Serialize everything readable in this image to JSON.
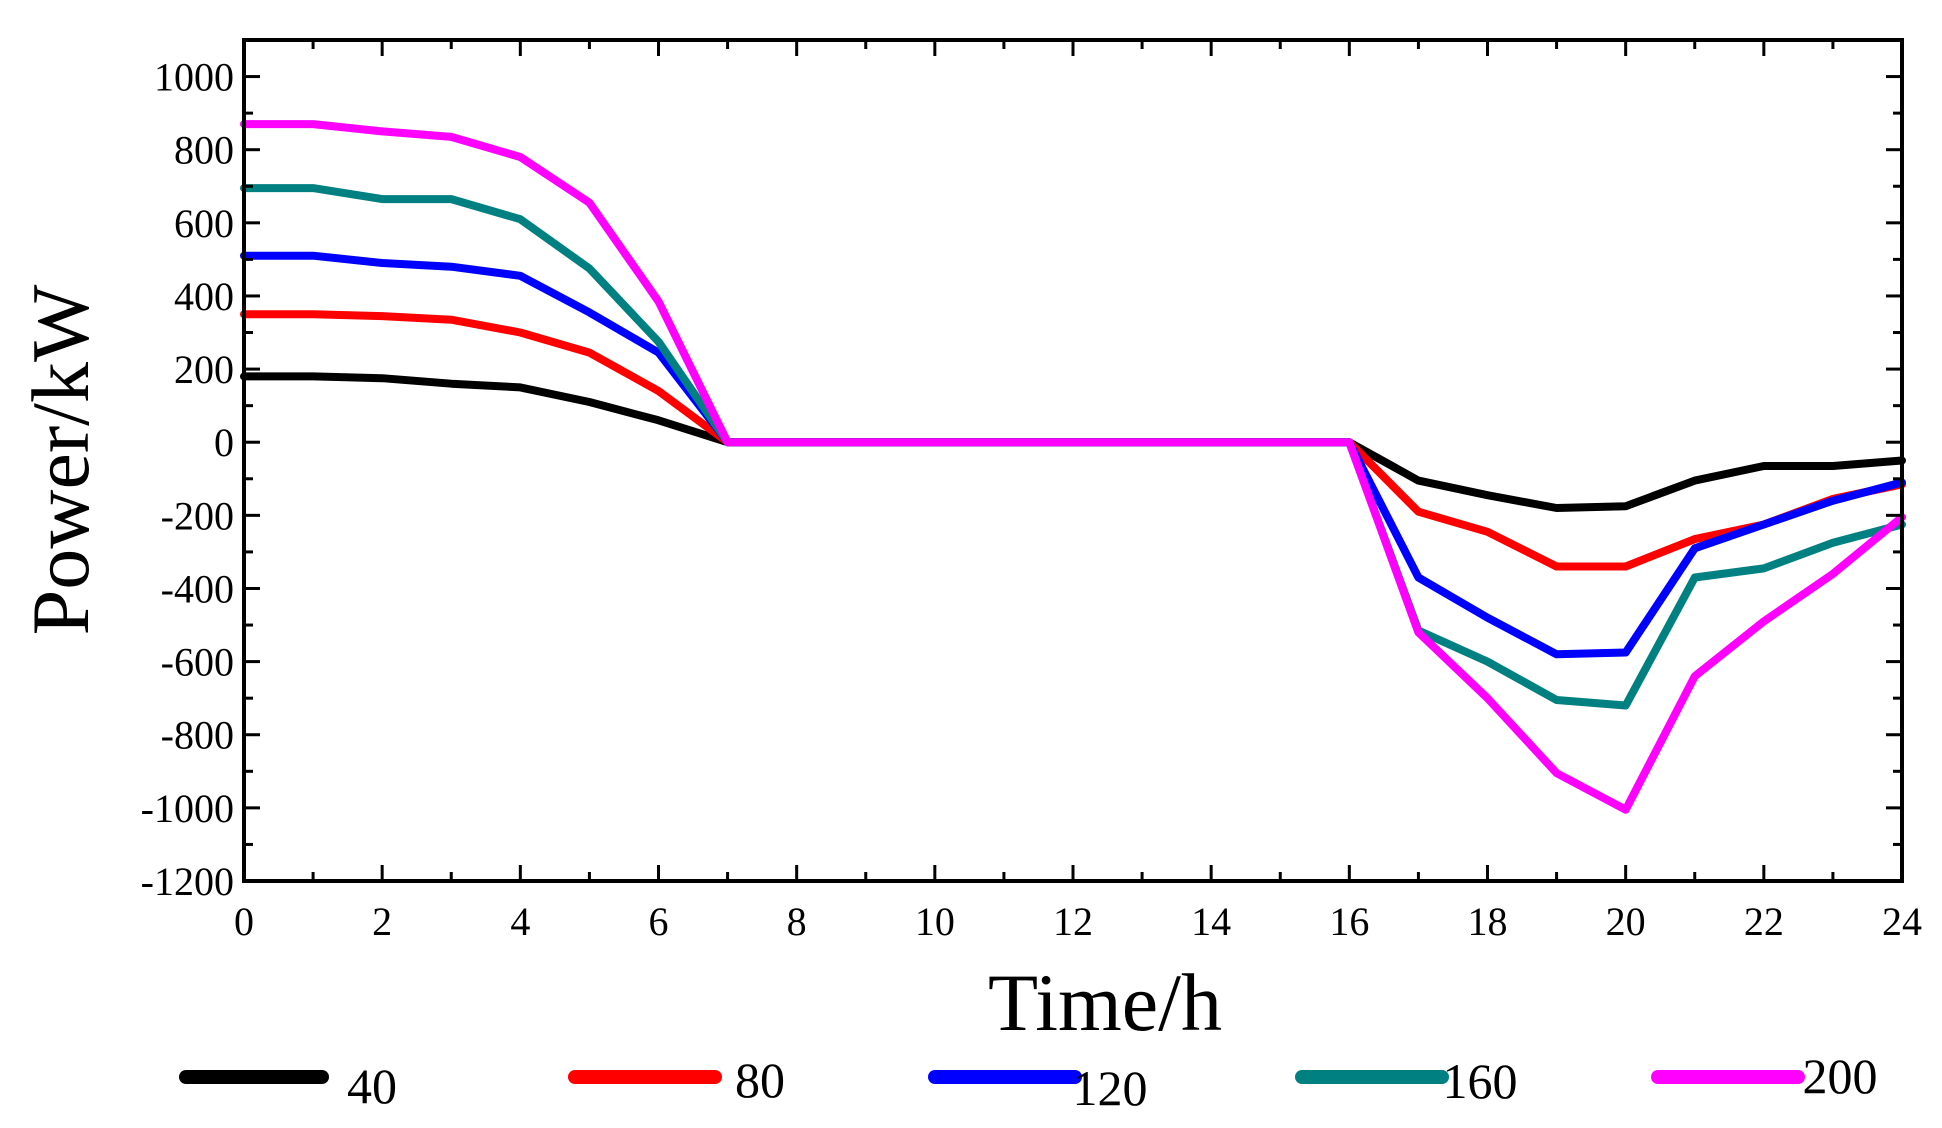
{
  "chart_data": {
    "type": "line",
    "title": "",
    "xlabel": "Time/h",
    "ylabel": "Power/kW",
    "xlim": [
      0,
      24
    ],
    "ylim": [
      -1200,
      1100
    ],
    "xticks": [
      0,
      2,
      4,
      6,
      8,
      10,
      12,
      14,
      16,
      18,
      20,
      22,
      24
    ],
    "yticks": [
      1000,
      800,
      600,
      400,
      200,
      0,
      -200,
      -400,
      -600,
      -800,
      -1000,
      -1200
    ],
    "x": [
      0,
      1,
      2,
      3,
      4,
      5,
      6,
      7,
      8,
      9,
      10,
      11,
      12,
      13,
      14,
      15,
      16,
      17,
      18,
      19,
      20,
      21,
      22,
      23,
      24
    ],
    "legend_position": "bottom",
    "series": [
      {
        "name": "40",
        "color": "#000000",
        "values": [
          180,
          180,
          175,
          160,
          150,
          110,
          60,
          0,
          0,
          0,
          0,
          0,
          0,
          0,
          0,
          0,
          0,
          -105,
          -145,
          -180,
          -175,
          -105,
          -65,
          -65,
          -50
        ]
      },
      {
        "name": "80",
        "color": "#ff0000",
        "values": [
          350,
          350,
          345,
          335,
          300,
          245,
          140,
          0,
          0,
          0,
          0,
          0,
          0,
          0,
          0,
          0,
          0,
          -190,
          -245,
          -340,
          -340,
          -265,
          -225,
          -155,
          -115
        ]
      },
      {
        "name": "120",
        "color": "#0000ff",
        "values": [
          510,
          510,
          490,
          480,
          455,
          355,
          245,
          0,
          0,
          0,
          0,
          0,
          0,
          0,
          0,
          0,
          0,
          -370,
          -480,
          -580,
          -575,
          -290,
          -225,
          -160,
          -110
        ]
      },
      {
        "name": "160",
        "color": "#008080",
        "values": [
          695,
          695,
          665,
          665,
          610,
          475,
          275,
          0,
          0,
          0,
          0,
          0,
          0,
          0,
          0,
          0,
          0,
          -515,
          -600,
          -705,
          -720,
          -370,
          -345,
          -275,
          -225
        ]
      },
      {
        "name": "200",
        "color": "#ff00ff",
        "values": [
          870,
          870,
          850,
          835,
          780,
          655,
          385,
          0,
          0,
          0,
          0,
          0,
          0,
          0,
          0,
          0,
          0,
          -520,
          -700,
          -905,
          -1005,
          -640,
          -490,
          -360,
          -205
        ]
      }
    ]
  }
}
